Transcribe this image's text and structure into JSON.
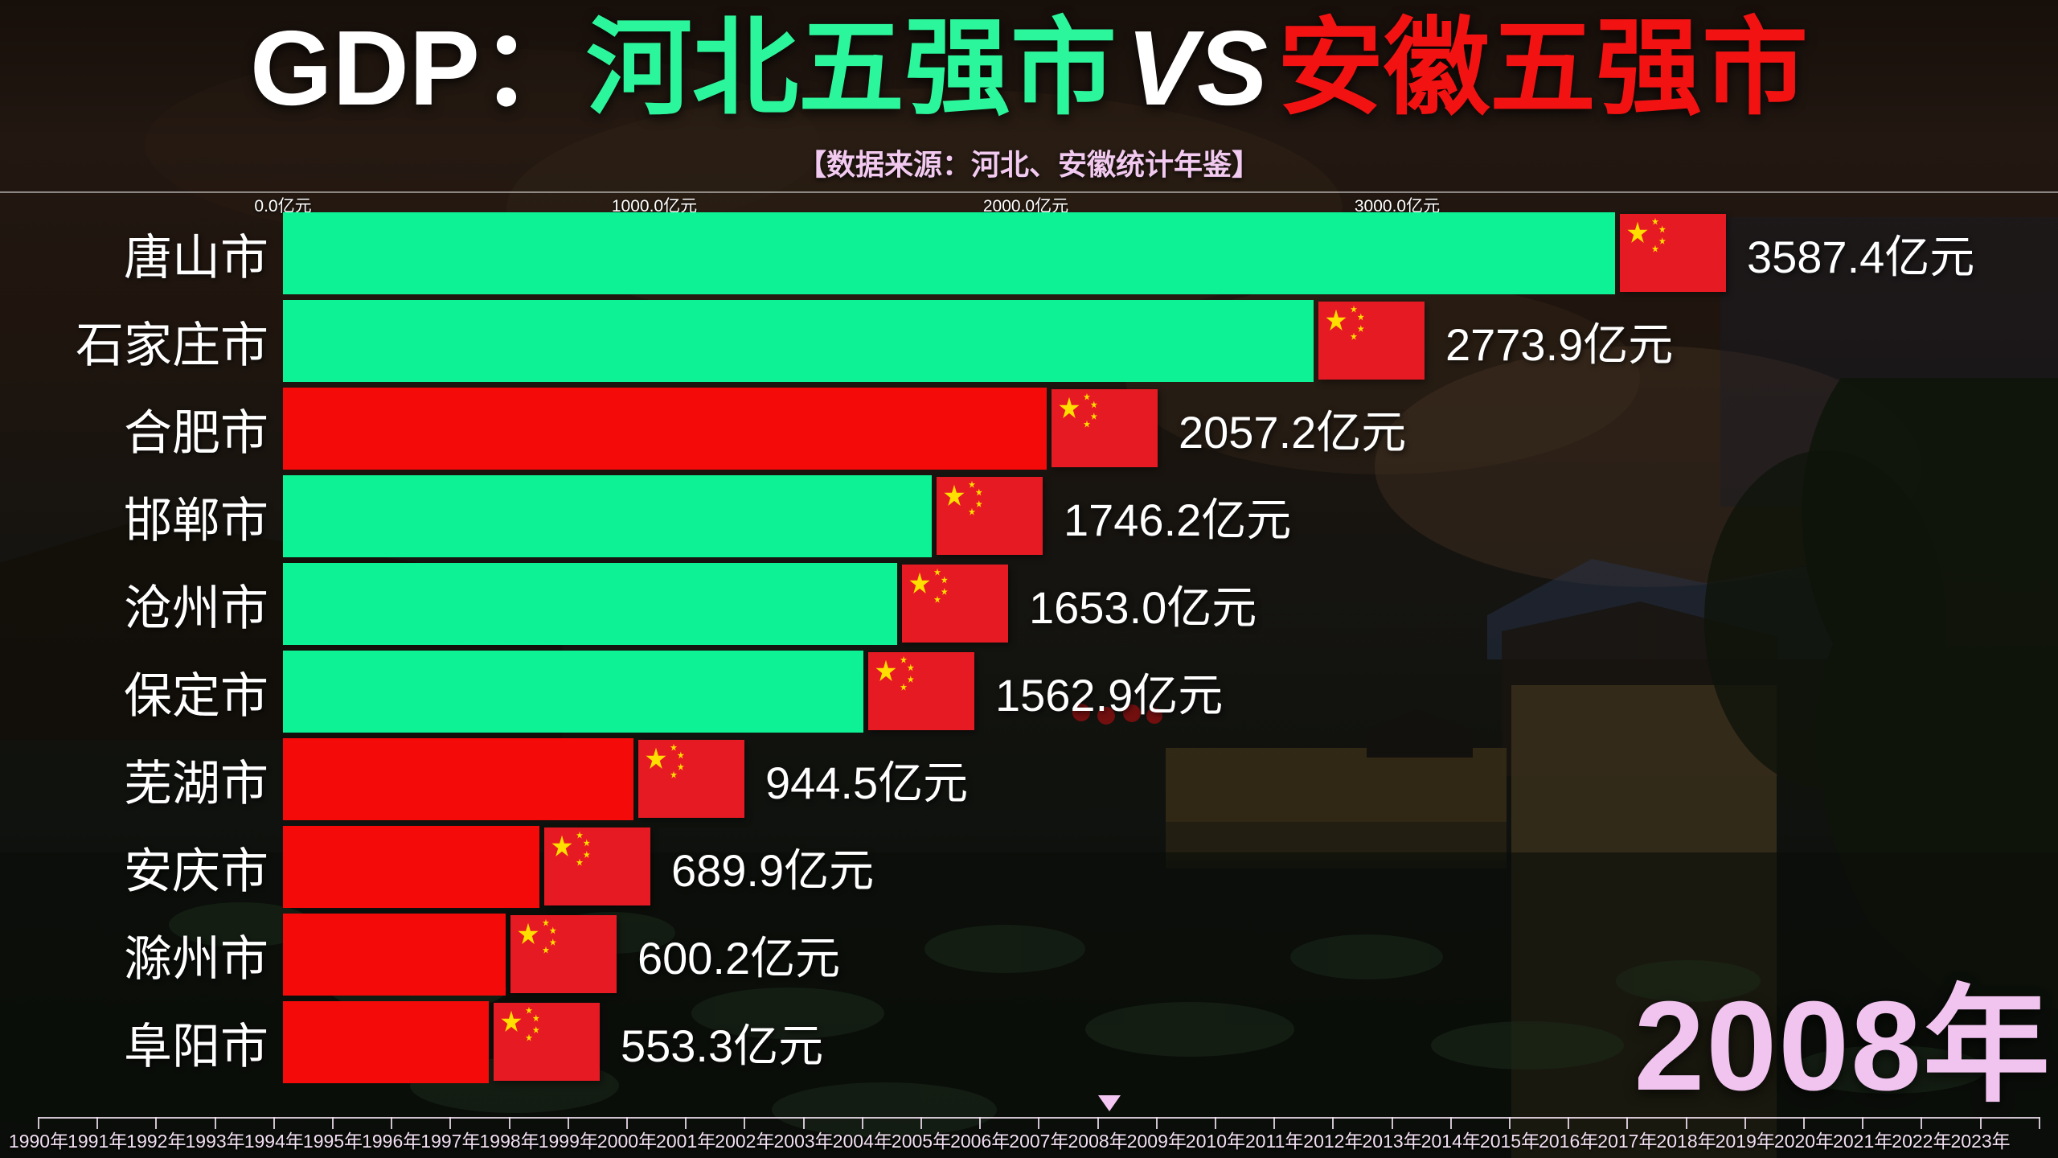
{
  "page": {
    "title_prefix": "GDP：",
    "title_hebei": "河北五强市",
    "title_vs": "VS",
    "title_anhui": "安徽五强市",
    "subtitle": "【数据来源：河北、安徽统计年鉴】"
  },
  "colors": {
    "hebei_bar": "#0DF295",
    "anhui_bar": "#F50A0A",
    "hebei_title": "#2CF69B",
    "anhui_title": "#F31212",
    "flag_red": "#E61A23",
    "flag_yellow": "#FFDE00",
    "year_pink": "#F1C3EF",
    "timeline_pink": "#F2DFF2"
  },
  "chart_data": {
    "type": "bar",
    "orientation": "horizontal",
    "title": "GDP：河北五强市 VS 安徽五强市",
    "subtitle": "【数据来源：河北、安徽统计年鉴】",
    "unit": "亿元",
    "x_ticks": [
      "0.0亿元",
      "1000.0亿元",
      "2000.0亿元",
      "3000.0亿元"
    ],
    "x_tick_values": [
      0,
      1000,
      2000,
      3000
    ],
    "x_tick_interval": 1000,
    "grid": false,
    "bars": [
      {
        "rank": 1,
        "city": "唐山市",
        "province": "河北",
        "side": "hebei",
        "value": 3587.4,
        "label": "3587.4亿元"
      },
      {
        "rank": 2,
        "city": "石家庄市",
        "province": "河北",
        "side": "hebei",
        "value": 2773.9,
        "label": "2773.9亿元"
      },
      {
        "rank": 3,
        "city": "合肥市",
        "province": "安徽",
        "side": "anhui",
        "value": 2057.2,
        "label": "2057.2亿元"
      },
      {
        "rank": 4,
        "city": "邯郸市",
        "province": "河北",
        "side": "hebei",
        "value": 1746.2,
        "label": "1746.2亿元"
      },
      {
        "rank": 5,
        "city": "沧州市",
        "province": "河北",
        "side": "hebei",
        "value": 1653.0,
        "label": "1653.0亿元"
      },
      {
        "rank": 6,
        "city": "保定市",
        "province": "河北",
        "side": "hebei",
        "value": 1562.9,
        "label": "1562.9亿元"
      },
      {
        "rank": 7,
        "city": "芜湖市",
        "province": "安徽",
        "side": "anhui",
        "value": 944.5,
        "label": "944.5亿元"
      },
      {
        "rank": 8,
        "city": "安庆市",
        "province": "安徽",
        "side": "anhui",
        "value": 689.9,
        "label": "689.9亿元"
      },
      {
        "rank": 9,
        "city": "滁州市",
        "province": "安徽",
        "side": "anhui",
        "value": 600.2,
        "label": "600.2亿元"
      },
      {
        "rank": 10,
        "city": "阜阳市",
        "province": "安徽",
        "side": "anhui",
        "value": 553.3,
        "label": "553.3亿元"
      }
    ],
    "current_year": "2008年",
    "timeline": {
      "years": [
        "1990年",
        "1991年",
        "1992年",
        "1993年",
        "1994年",
        "1995年",
        "1996年",
        "1997年",
        "1998年",
        "1999年",
        "2000年",
        "2001年",
        "2002年",
        "2003年",
        "2004年",
        "2005年",
        "2006年",
        "2007年",
        "2008年",
        "2009年",
        "2010年",
        "2011年",
        "2012年",
        "2013年",
        "2014年",
        "2015年",
        "2016年",
        "2017年",
        "2018年",
        "2019年",
        "2020年",
        "2021年",
        "2022年",
        "2023年"
      ],
      "selected": "2008年"
    }
  }
}
